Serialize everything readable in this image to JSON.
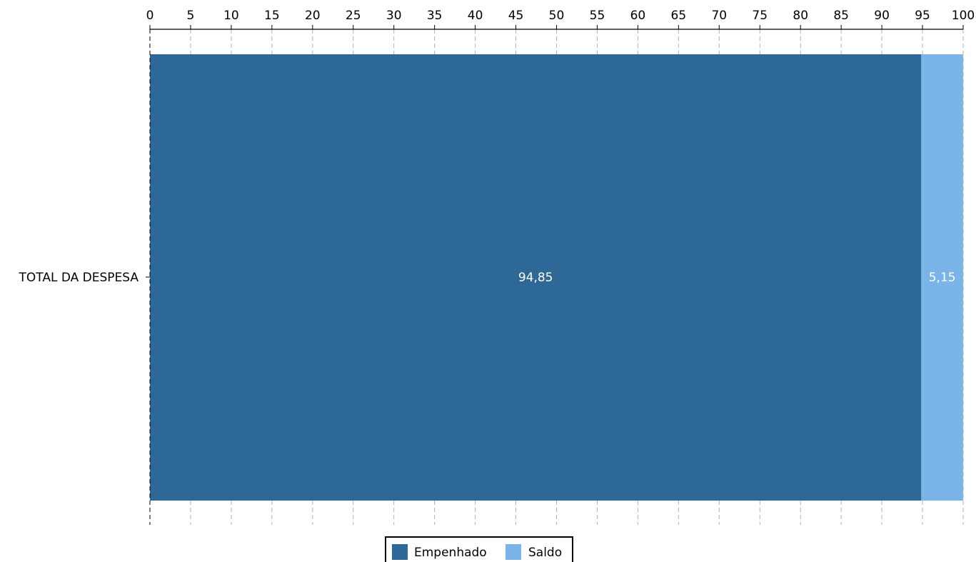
{
  "chart_data": {
    "type": "bar",
    "orientation": "horizontal",
    "stacked": true,
    "categories": [
      "TOTAL DA DESPESA"
    ],
    "series": [
      {
        "name": "Empenhado",
        "values": [
          94.85
        ],
        "labels": [
          "94,85"
        ],
        "color": "#2e6896"
      },
      {
        "name": "Saldo",
        "values": [
          5.15
        ],
        "labels": [
          "5,15"
        ],
        "color": "#7ab4e9"
      }
    ],
    "xlim": [
      0,
      100
    ],
    "xticks": [
      0,
      5,
      10,
      15,
      20,
      25,
      30,
      35,
      40,
      45,
      50,
      55,
      60,
      65,
      70,
      75,
      80,
      85,
      90,
      95,
      100
    ],
    "x_axis_position": "top",
    "grid": "vertical dashed",
    "legend_position": "bottom-center",
    "title": "",
    "xlabel": "",
    "ylabel": ""
  }
}
